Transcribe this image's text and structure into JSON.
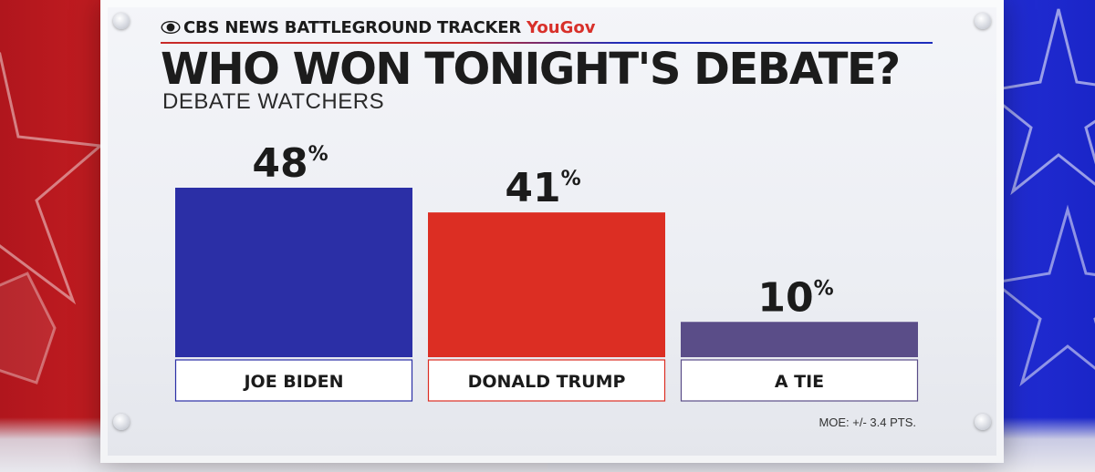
{
  "header": {
    "brand": "CBS NEWS BATTLEGROUND TRACKER",
    "partner": "YouGov",
    "title": "WHO WON TONIGHT'S DEBATE?",
    "subtitle": "DEBATE WATCHERS"
  },
  "footer": {
    "moe": "MOE: +/- 3.4 PTS."
  },
  "colors": {
    "biden": "#2b2fa6",
    "trump": "#dc2e23",
    "tie": "#5a4d88",
    "label_text": "#1b1b1b"
  },
  "icons": {
    "logo": "cbs-eye-icon"
  },
  "chart_data": {
    "type": "bar",
    "categories": [
      "JOE BIDEN",
      "DONALD TRUMP",
      "A TIE"
    ],
    "values": [
      48,
      41,
      10
    ],
    "value_suffix": "%",
    "ylim": [
      0,
      48
    ],
    "grid": false,
    "legend": "none"
  }
}
